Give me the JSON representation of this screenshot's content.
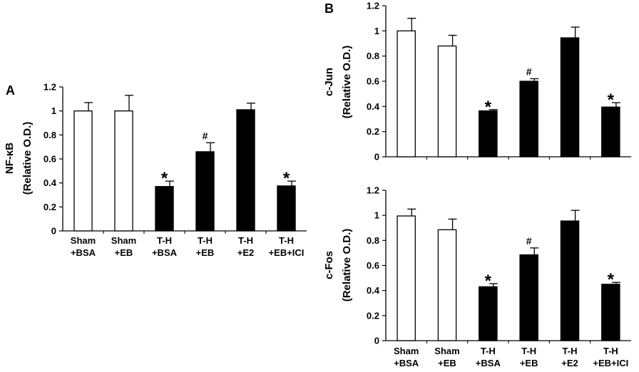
{
  "panels": [
    {
      "label": "A"
    },
    {
      "label": "B"
    }
  ],
  "chart_data": [
    {
      "type": "bar",
      "panel": "A",
      "ylabel": "NF-κB",
      "ylabel_sub": "(Relative O.D.)",
      "ylim": [
        0,
        1.2
      ],
      "yticks": [
        "0",
        "0.2",
        "0.4",
        "0.6",
        "0.8",
        "1",
        "1.2"
      ],
      "categories": [
        [
          "Sham",
          "+BSA"
        ],
        [
          "Sham",
          "+EB"
        ],
        [
          "T-H",
          "+BSA"
        ],
        [
          "T-H",
          "+EB"
        ],
        [
          "T-H",
          "+E2"
        ],
        [
          "T-H",
          "+EB+ICI"
        ]
      ],
      "values": [
        1.0,
        1.0,
        0.37,
        0.66,
        1.01,
        0.375
      ],
      "errors": [
        0.07,
        0.13,
        0.045,
        0.075,
        0.055,
        0.04
      ],
      "fills": [
        "#ffffff",
        "#ffffff",
        "#000000",
        "#000000",
        "#000000",
        "#000000"
      ],
      "markers": [
        "",
        "",
        "*",
        "#",
        "",
        "*"
      ]
    },
    {
      "type": "bar",
      "panel": "B-top",
      "ylabel": "c-Jun",
      "ylabel_sub": "(Relative O.D.)",
      "ylim": [
        0,
        1.2
      ],
      "yticks": [
        "0",
        "0.2",
        "0.4",
        "0.6",
        "0.8",
        "1",
        "1.2"
      ],
      "categories": [
        [
          "Sham",
          "+BSA"
        ],
        [
          "Sham",
          "+EB"
        ],
        [
          "T-H",
          "+BSA"
        ],
        [
          "T-H",
          "+EB"
        ],
        [
          "T-H",
          "+E2"
        ],
        [
          "T-H",
          "+EB+ICI"
        ]
      ],
      "values": [
        1.0,
        0.88,
        0.365,
        0.6,
        0.945,
        0.395
      ],
      "errors": [
        0.1,
        0.085,
        0.01,
        0.02,
        0.085,
        0.035
      ],
      "fills": [
        "#ffffff",
        "#ffffff",
        "#000000",
        "#000000",
        "#000000",
        "#000000"
      ],
      "markers": [
        "",
        "",
        "*",
        "#",
        "",
        "*"
      ]
    },
    {
      "type": "bar",
      "panel": "B-bottom",
      "ylabel": "c-Fos",
      "ylabel_sub": "(Relative O.D.)",
      "ylim": [
        0,
        1.2
      ],
      "yticks": [
        "0",
        "0.2",
        "0.4",
        "0.6",
        "0.8",
        "1",
        "1.2"
      ],
      "categories": [
        [
          "Sham",
          "+BSA"
        ],
        [
          "Sham",
          "+EB"
        ],
        [
          "T-H",
          "+BSA"
        ],
        [
          "T-H",
          "+EB"
        ],
        [
          "T-H",
          "+E2"
        ],
        [
          "T-H",
          "+EB+ICI"
        ]
      ],
      "values": [
        0.995,
        0.885,
        0.43,
        0.685,
        0.955,
        0.45
      ],
      "errors": [
        0.055,
        0.085,
        0.025,
        0.055,
        0.085,
        0.015
      ],
      "fills": [
        "#ffffff",
        "#ffffff",
        "#000000",
        "#000000",
        "#000000",
        "#000000"
      ],
      "markers": [
        "",
        "",
        "*",
        "#",
        "",
        "*"
      ]
    }
  ]
}
